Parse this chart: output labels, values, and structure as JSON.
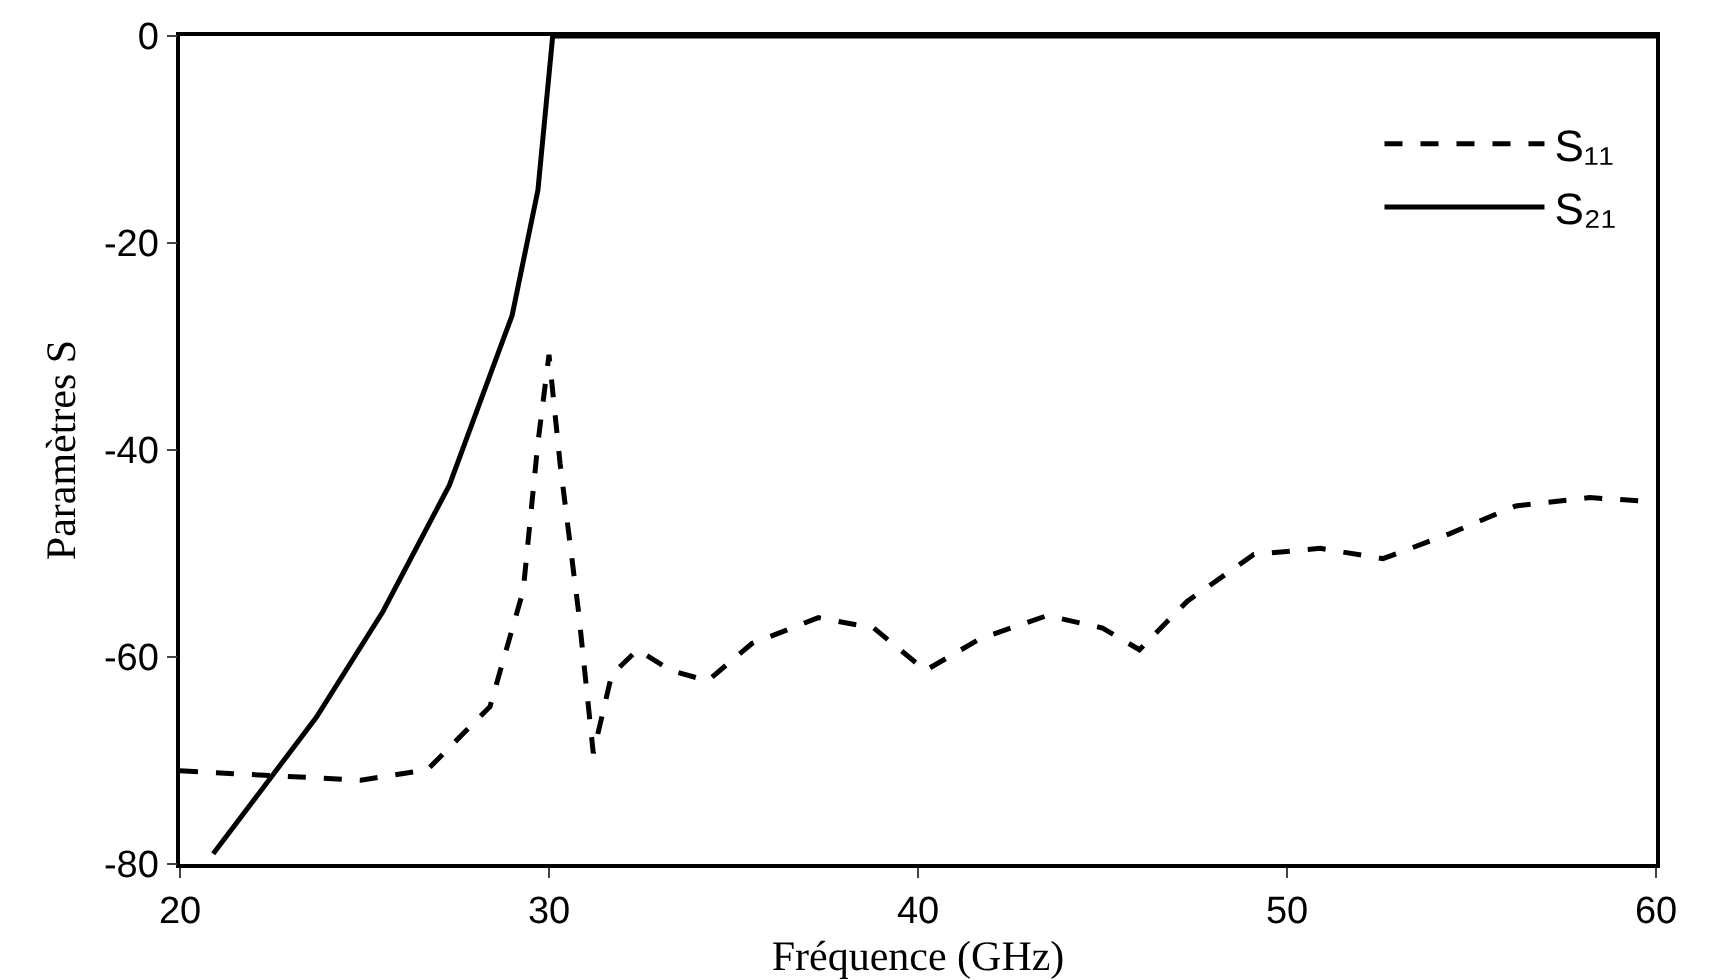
{
  "chart_data": {
    "type": "line",
    "xlabel": "Fréquence (GHz)",
    "ylabel": "Paramètres S",
    "xlim": [
      20,
      60
    ],
    "ylim": [
      -80,
      0
    ],
    "xticks": [
      20,
      30,
      40,
      50,
      60
    ],
    "yticks": [
      -80,
      -60,
      -40,
      -20,
      0
    ],
    "grid": false,
    "legend": "top right",
    "marker": "none",
    "series": [
      {
        "name": "S₁₁",
        "color": "#000000",
        "line_style": "dashed",
        "x": [
          20,
          24.9,
          26.7,
          28.4,
          29.3,
          29.7,
          30,
          30.3,
          30.8,
          31.2,
          31.7,
          32.4,
          33.3,
          34.3,
          35.5,
          37.3,
          38.8,
          40.2,
          41.7,
          43.5,
          45,
          46,
          47.3,
          49.1,
          50.9,
          52.6,
          54.4,
          56.2,
          58.2,
          60
        ],
        "values": [
          -71,
          -71.9,
          -70.9,
          -64.8,
          -53.6,
          -39.3,
          -30.8,
          -41.3,
          -55.6,
          -69.3,
          -61.7,
          -59.3,
          -61.3,
          -62.3,
          -58.7,
          -56.2,
          -57.2,
          -61.3,
          -58.2,
          -56,
          -57.2,
          -59.3,
          -54.6,
          -50.1,
          -49.5,
          -50.5,
          -48.1,
          -45.4,
          -44.6,
          -45
        ]
      },
      {
        "name": "S₂₁",
        "color": "#000000",
        "line_style": "solid",
        "x": [
          20.9,
          21.9,
          23.7,
          25.5,
          27.3,
          29,
          29.7,
          30.1,
          60
        ],
        "values": [
          -79,
          -74.3,
          -65.8,
          -55.6,
          -43.4,
          -27,
          -14.9,
          0,
          0
        ]
      }
    ]
  }
}
